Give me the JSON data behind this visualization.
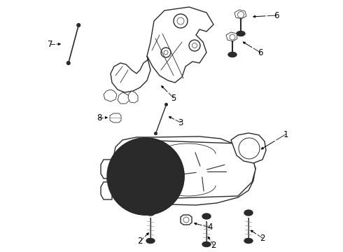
{
  "bg_color": "#ffffff",
  "line_color": "#2a2a2a",
  "label_color": "#000000",
  "label_fontsize": 8.5,
  "figsize": [
    4.9,
    3.6
  ],
  "dpi": 100,
  "bracket_color": "#2a2a2a",
  "pump_color": "#2a2a2a"
}
